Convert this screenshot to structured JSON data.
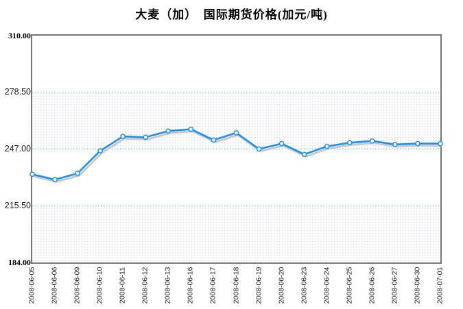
{
  "title": "大麦（加）　国际期货价格(加元/吨)",
  "chart_data": {
    "type": "line",
    "title": "大麦（加）　国际期货价格(加元/吨)",
    "xlabel": "",
    "ylabel": "加元/吨",
    "x": [
      "2008-06-05",
      "2008-06-06",
      "2008-06-09",
      "2008-06-10",
      "2008-06-11",
      "2008-06-12",
      "2008-06-13",
      "2008-06-16",
      "2008-06-17",
      "2008-06-18",
      "2008-06-19",
      "2008-06-20",
      "2008-06-23",
      "2008-06-24",
      "2008-06-25",
      "2008-06-26",
      "2008-06-27",
      "2008-06-30",
      "2008-07-01"
    ],
    "series": [
      {
        "name": "国际期货价格(加元/吨)",
        "values": [
          233,
          230,
          233.5,
          246,
          254,
          253.5,
          257,
          258,
          252,
          256,
          247,
          250,
          244,
          248.5,
          250.5,
          251.5,
          249.5,
          250,
          250
        ]
      }
    ],
    "ylim": [
      184,
      310
    ],
    "yticks": [
      {
        "label": "310.00",
        "value": 310,
        "bold": true
      },
      {
        "label": "278.50",
        "value": 278.5,
        "bold": false
      },
      {
        "label": "247.00",
        "value": 247,
        "bold": false
      },
      {
        "label": "215.50",
        "value": 215.5,
        "bold": false
      },
      {
        "label": "184.00",
        "value": 184,
        "bold": true
      }
    ],
    "gridlines": [
      278.5,
      247,
      215.5
    ],
    "bands": [
      [
        278.5,
        247
      ],
      [
        215.5,
        184
      ]
    ],
    "legend": "none",
    "grid": "horizontal-dotted",
    "marker": "circle-open",
    "style": {
      "line_color": "#1e8fee",
      "shadow_color": "#c9c9c9",
      "marker_fill": "#ffffff",
      "grid_color": "#5fcfcf",
      "band_dot_pink": "#f2c6d6",
      "band_dot_blue": "#c6daf2",
      "border_color": "#757575",
      "text_color": "#000000"
    }
  }
}
